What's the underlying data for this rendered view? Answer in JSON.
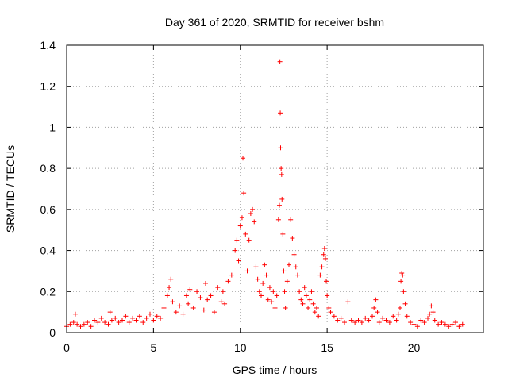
{
  "chart_data": {
    "type": "scatter",
    "title": "Day 361 of 2020, SRMTID for receiver bshm",
    "xlabel": "GPS time / hours",
    "ylabel": "SRMTID / TECUs",
    "xlim": [
      0,
      24
    ],
    "ylim": [
      0,
      1.4
    ],
    "xticks": [
      0,
      5,
      10,
      15,
      20
    ],
    "xtick_labels": [
      "0",
      "5",
      "10",
      "15",
      "20"
    ],
    "yticks": [
      0,
      0.2,
      0.4,
      0.6,
      0.8,
      1,
      1.2,
      1.4
    ],
    "ytick_labels": [
      "0",
      "0.2",
      "0.4",
      "0.6",
      "0.8",
      "1",
      "1.2",
      "1.4"
    ],
    "grid": true,
    "marker": "+",
    "series": [
      {
        "name": "SRMTID",
        "color": "#ff0000",
        "x": [
          0.0,
          0.2,
          0.4,
          0.5,
          0.6,
          0.8,
          1.0,
          1.2,
          1.4,
          1.6,
          1.8,
          2.0,
          2.2,
          2.4,
          2.5,
          2.6,
          2.8,
          3.0,
          3.2,
          3.4,
          3.6,
          3.8,
          4.0,
          4.2,
          4.4,
          4.6,
          4.8,
          5.0,
          5.2,
          5.4,
          5.6,
          5.8,
          5.9,
          6.0,
          6.1,
          6.3,
          6.5,
          6.7,
          6.9,
          7.0,
          7.1,
          7.3,
          7.5,
          7.7,
          7.9,
          8.0,
          8.1,
          8.3,
          8.5,
          8.7,
          8.9,
          9.0,
          9.1,
          9.3,
          9.5,
          9.7,
          9.8,
          9.9,
          10.0,
          10.1,
          10.15,
          10.2,
          10.3,
          10.4,
          10.5,
          10.6,
          10.7,
          10.8,
          10.9,
          11.0,
          11.1,
          11.2,
          11.3,
          11.4,
          11.5,
          11.6,
          11.7,
          11.8,
          11.9,
          12.0,
          12.1,
          12.2,
          12.25,
          12.28,
          12.3,
          12.32,
          12.35,
          12.38,
          12.4,
          12.45,
          12.5,
          12.55,
          12.6,
          12.7,
          12.8,
          12.9,
          13.0,
          13.1,
          13.2,
          13.3,
          13.4,
          13.5,
          13.6,
          13.7,
          13.8,
          13.9,
          14.0,
          14.1,
          14.2,
          14.3,
          14.4,
          14.5,
          14.6,
          14.7,
          14.8,
          14.85,
          14.9,
          14.95,
          15.0,
          15.1,
          15.2,
          15.4,
          15.6,
          15.8,
          16.0,
          16.2,
          16.4,
          16.6,
          16.8,
          17.0,
          17.2,
          17.4,
          17.6,
          17.7,
          17.8,
          17.9,
          18.0,
          18.2,
          18.4,
          18.6,
          18.8,
          19.0,
          19.1,
          19.2,
          19.25,
          19.3,
          19.35,
          19.4,
          19.5,
          19.6,
          19.8,
          20.0,
          20.2,
          20.4,
          20.6,
          20.8,
          20.9,
          21.0,
          21.1,
          21.2,
          21.4,
          21.6,
          21.8,
          22.0,
          22.2,
          22.4,
          22.6,
          22.8
        ],
        "y": [
          0.03,
          0.04,
          0.05,
          0.09,
          0.04,
          0.03,
          0.04,
          0.05,
          0.03,
          0.06,
          0.05,
          0.07,
          0.05,
          0.04,
          0.1,
          0.06,
          0.07,
          0.05,
          0.06,
          0.08,
          0.05,
          0.07,
          0.06,
          0.08,
          0.05,
          0.07,
          0.09,
          0.06,
          0.08,
          0.07,
          0.12,
          0.18,
          0.22,
          0.26,
          0.15,
          0.1,
          0.13,
          0.09,
          0.18,
          0.14,
          0.21,
          0.12,
          0.2,
          0.17,
          0.11,
          0.24,
          0.16,
          0.18,
          0.1,
          0.22,
          0.15,
          0.2,
          0.14,
          0.25,
          0.28,
          0.4,
          0.45,
          0.35,
          0.52,
          0.56,
          0.85,
          0.68,
          0.48,
          0.3,
          0.45,
          0.58,
          0.6,
          0.54,
          0.32,
          0.26,
          0.2,
          0.18,
          0.24,
          0.33,
          0.28,
          0.16,
          0.22,
          0.15,
          0.2,
          0.12,
          0.18,
          0.55,
          0.62,
          1.32,
          1.07,
          0.9,
          0.8,
          0.77,
          0.65,
          0.48,
          0.3,
          0.2,
          0.12,
          0.25,
          0.33,
          0.55,
          0.46,
          0.38,
          0.32,
          0.28,
          0.2,
          0.16,
          0.14,
          0.22,
          0.18,
          0.12,
          0.16,
          0.2,
          0.14,
          0.1,
          0.12,
          0.08,
          0.28,
          0.32,
          0.38,
          0.41,
          0.36,
          0.25,
          0.18,
          0.12,
          0.1,
          0.08,
          0.06,
          0.07,
          0.05,
          0.15,
          0.06,
          0.05,
          0.06,
          0.05,
          0.07,
          0.06,
          0.08,
          0.12,
          0.16,
          0.1,
          0.05,
          0.07,
          0.06,
          0.05,
          0.08,
          0.06,
          0.09,
          0.12,
          0.25,
          0.29,
          0.28,
          0.2,
          0.14,
          0.08,
          0.05,
          0.04,
          0.03,
          0.06,
          0.05,
          0.07,
          0.09,
          0.13,
          0.1,
          0.06,
          0.04,
          0.05,
          0.04,
          0.03,
          0.04,
          0.05,
          0.03,
          0.04
        ]
      }
    ]
  }
}
